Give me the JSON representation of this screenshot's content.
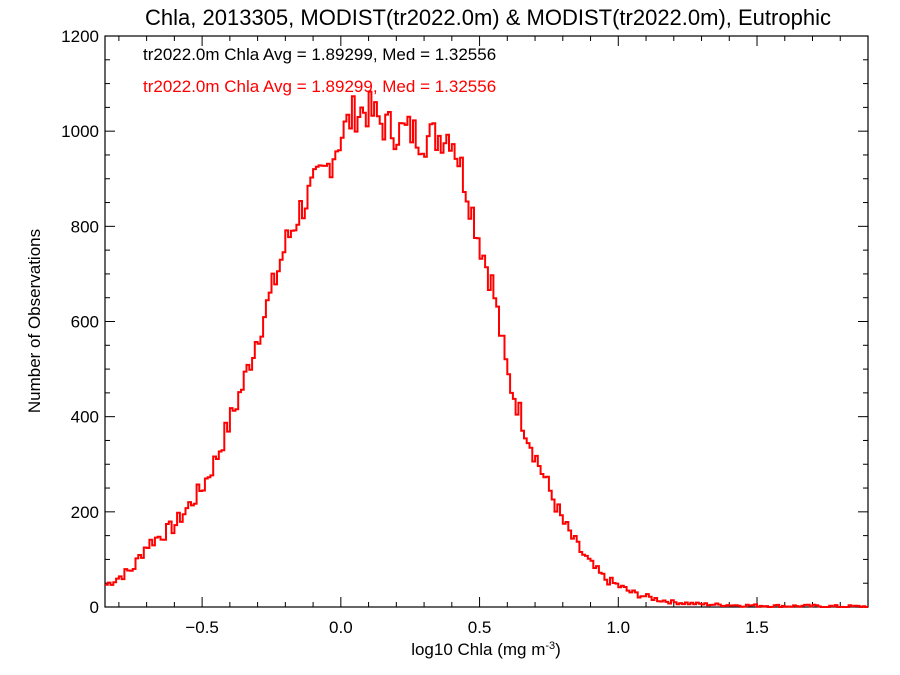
{
  "chart_data": {
    "type": "histogram-step",
    "title": "Chla, 2013305, MODIST(tr2022.0m) & MODIST(tr2022.0m), Eutrophic",
    "xlabel": "log10 Chla (mg m",
    "xlabel_sup": "-3",
    "xlabel_close": ")",
    "ylabel": "Number of Observations",
    "xlim": [
      -0.85,
      1.9
    ],
    "ylim": [
      0,
      1200
    ],
    "xticks": [
      -0.5,
      0.0,
      0.5,
      1.0,
      1.5
    ],
    "xtick_labels": [
      "−0.5",
      "0.0",
      "0.5",
      "1.0",
      "1.5"
    ],
    "yticks": [
      0,
      200,
      400,
      600,
      800,
      1000,
      1200
    ],
    "ytick_labels": [
      "0",
      "200",
      "400",
      "600",
      "800",
      "1000",
      "1200"
    ],
    "annotations": [
      {
        "text": "tr2022.0m Chla Avg = 1.89299, Med = 1.32556",
        "color": "#000000"
      },
      {
        "text": "tr2022.0m Chla Avg = 1.89299, Med = 1.32556",
        "color": "#ff0000"
      }
    ],
    "series": [
      {
        "color": "#ff0000",
        "points": [
          [
            -0.85,
            45
          ],
          [
            -0.75,
            80
          ],
          [
            -0.7,
            130
          ],
          [
            -0.65,
            150
          ],
          [
            -0.6,
            170
          ],
          [
            -0.55,
            210
          ],
          [
            -0.5,
            250
          ],
          [
            -0.45,
            310
          ],
          [
            -0.4,
            390
          ],
          [
            -0.35,
            470
          ],
          [
            -0.3,
            570
          ],
          [
            -0.25,
            660
          ],
          [
            -0.2,
            760
          ],
          [
            -0.15,
            830
          ],
          [
            -0.1,
            880
          ],
          [
            -0.05,
            920
          ],
          [
            0.0,
            990
          ],
          [
            0.05,
            1040
          ],
          [
            0.1,
            1045
          ],
          [
            0.15,
            1015
          ],
          [
            0.2,
            1000
          ],
          [
            0.25,
            1000
          ],
          [
            0.3,
            985
          ],
          [
            0.35,
            990
          ],
          [
            0.4,
            995
          ],
          [
            0.45,
            890
          ],
          [
            0.5,
            770
          ],
          [
            0.55,
            670
          ],
          [
            0.6,
            490
          ],
          [
            0.65,
            400
          ],
          [
            0.7,
            320
          ],
          [
            0.75,
            250
          ],
          [
            0.8,
            180
          ],
          [
            0.85,
            130
          ],
          [
            0.9,
            90
          ],
          [
            0.95,
            60
          ],
          [
            1.0,
            45
          ],
          [
            1.05,
            30
          ],
          [
            1.1,
            22
          ],
          [
            1.15,
            15
          ],
          [
            1.2,
            10
          ],
          [
            1.3,
            6
          ],
          [
            1.4,
            4
          ],
          [
            1.5,
            3
          ],
          [
            1.6,
            2
          ],
          [
            1.7,
            2
          ],
          [
            1.8,
            1
          ],
          [
            1.9,
            1
          ]
        ]
      }
    ]
  }
}
